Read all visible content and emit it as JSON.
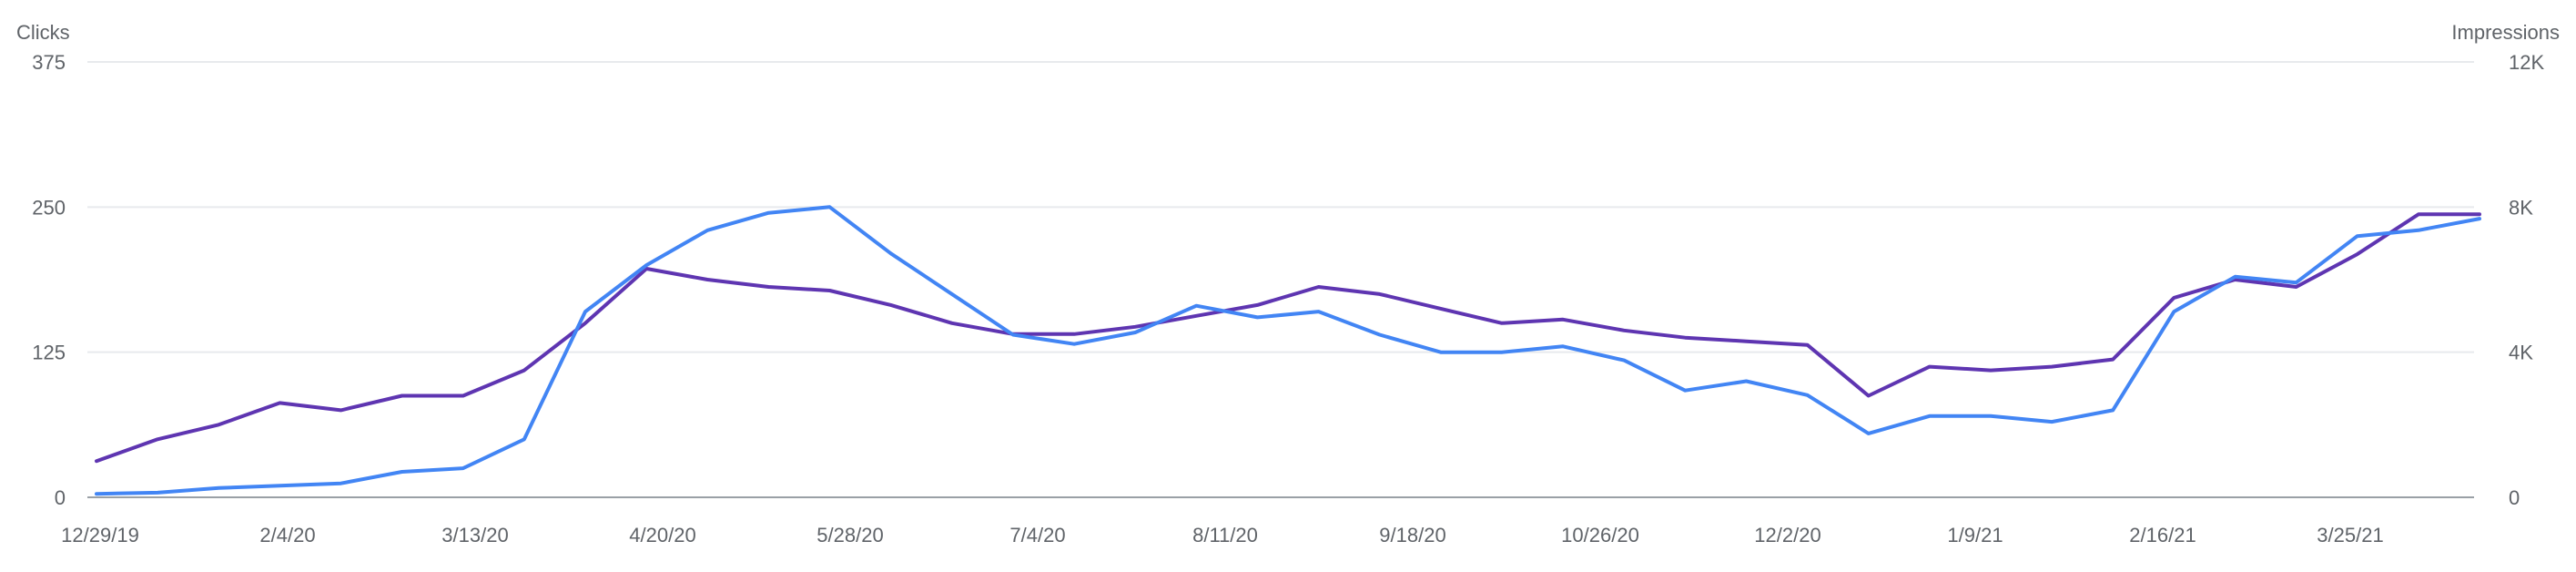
{
  "chart_data": {
    "type": "line",
    "title": "",
    "y_left": {
      "label": "Clicks",
      "ticks": [
        "0",
        "125",
        "250",
        "375"
      ],
      "min": 0,
      "max": 375
    },
    "y_right": {
      "label": "Impressions",
      "ticks": [
        "0",
        "4K",
        "8K",
        "12K"
      ],
      "min": 0,
      "max": 12000
    },
    "x_tick_labels": [
      "12/29/19",
      "2/4/20",
      "3/13/20",
      "4/20/20",
      "5/28/20",
      "7/4/20",
      "8/11/20",
      "9/18/20",
      "10/26/20",
      "12/2/20",
      "1/9/21",
      "2/16/21",
      "3/25/21"
    ],
    "x": [
      "12/29/19",
      "1/12/20",
      "1/26/20",
      "2/4/20",
      "2/18/20",
      "3/1/20",
      "3/13/20",
      "3/27/20",
      "4/10/20",
      "4/20/20",
      "5/5/20",
      "5/19/20",
      "5/28/20",
      "6/10/20",
      "6/22/20",
      "7/4/20",
      "7/18/20",
      "8/1/20",
      "8/11/20",
      "8/25/20",
      "9/8/20",
      "9/18/20",
      "10/2/20",
      "10/16/20",
      "10/26/20",
      "11/9/20",
      "11/22/20",
      "12/2/20",
      "12/16/20",
      "12/30/20",
      "1/9/21",
      "1/23/21",
      "2/6/21",
      "2/16/21",
      "3/2/21",
      "3/14/21",
      "3/25/21",
      "4/8/21",
      "4/20/21",
      "4/28/21"
    ],
    "series": [
      {
        "name": "Clicks",
        "axis": "left",
        "color": "#4285f4",
        "values": [
          3,
          4,
          8,
          10,
          12,
          22,
          25,
          50,
          160,
          200,
          230,
          245,
          250,
          210,
          175,
          140,
          132,
          142,
          165,
          155,
          160,
          140,
          125,
          125,
          130,
          118,
          92,
          100,
          88,
          55,
          70,
          70,
          65,
          75,
          160,
          190,
          185,
          225,
          230,
          240
        ]
      },
      {
        "name": "Impressions",
        "axis": "right",
        "color": "#5e35b1",
        "values": [
          1000,
          1600,
          2000,
          2600,
          2400,
          2800,
          2800,
          3500,
          4800,
          6300,
          6000,
          5800,
          5700,
          5300,
          4800,
          4500,
          4500,
          4700,
          5000,
          5300,
          5800,
          5600,
          5200,
          4800,
          4900,
          4600,
          4400,
          4300,
          4200,
          2800,
          3600,
          3500,
          3600,
          3800,
          5500,
          6000,
          5800,
          6700,
          7800,
          7800
        ]
      }
    ],
    "grid": true,
    "legend": "none"
  }
}
